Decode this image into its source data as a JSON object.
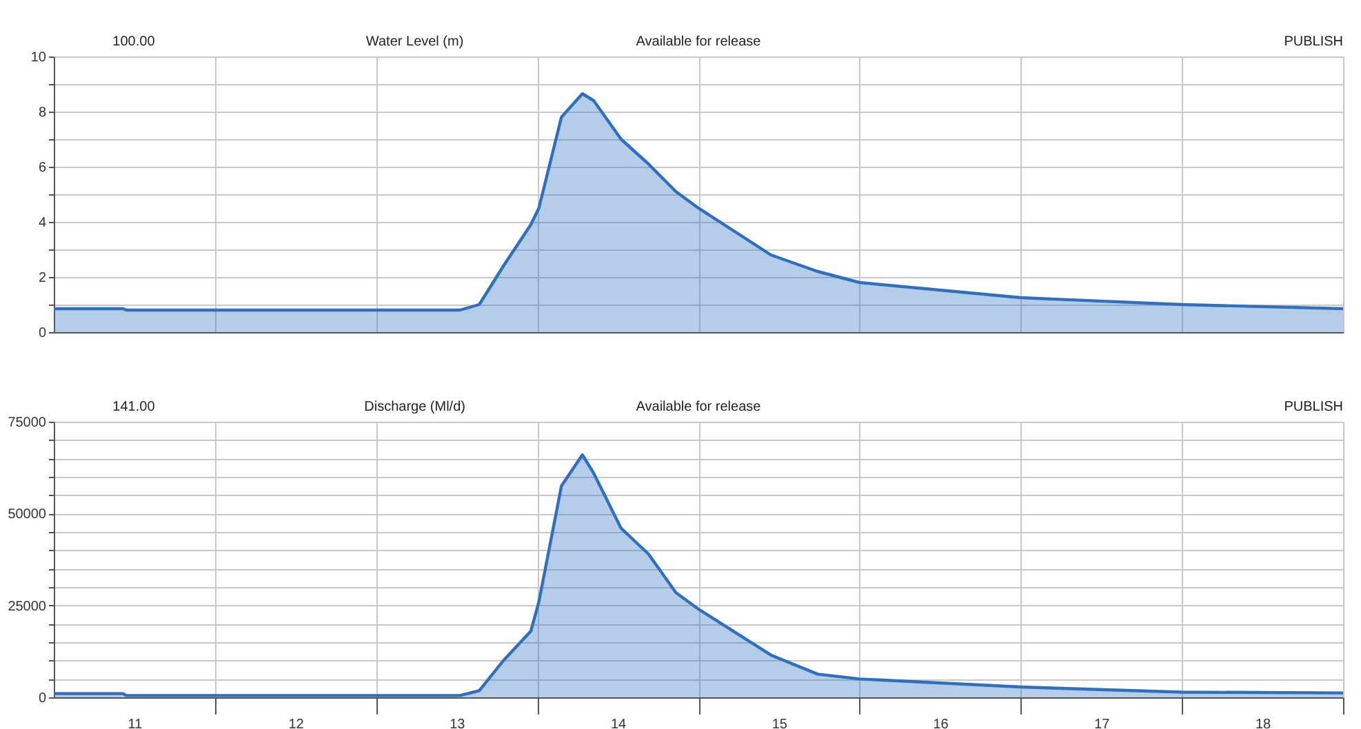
{
  "chart_data": [
    {
      "type": "area",
      "title": "Water Level (m)",
      "annotations": [
        "100.00",
        "Available for release",
        "PUBLISH"
      ],
      "x": [
        11,
        11.43,
        11.45,
        12,
        13.52,
        13.64,
        13.79,
        13.96,
        14.01,
        14.15,
        14.28,
        14.35,
        14.52,
        14.69,
        14.86,
        15.0,
        15.45,
        15.74,
        16.0,
        17.0,
        18.0,
        19.0
      ],
      "series": [
        {
          "color": "#2f6fc0",
          "values": [
            0.85,
            0.85,
            0.8,
            0.8,
            0.8,
            1.0,
            2.4,
            3.9,
            4.5,
            7.8,
            8.65,
            8.4,
            7.0,
            6.1,
            5.1,
            4.5,
            2.8,
            2.2,
            1.8,
            1.25,
            1.0,
            0.85
          ]
        }
      ],
      "xlim": [
        11,
        19
      ],
      "xticks": [
        {
          "value": 12,
          "label": null
        },
        {
          "value": 13,
          "label": null
        },
        {
          "value": 14,
          "label": null
        },
        {
          "value": 15,
          "label": null
        },
        {
          "value": 16,
          "label": null
        },
        {
          "value": 17,
          "label": null
        },
        {
          "value": 18,
          "label": null
        },
        {
          "value": 19,
          "label": null
        }
      ],
      "ylim": [
        0,
        10
      ],
      "yticks": [
        0,
        {
          "value": 1,
          "label": null
        },
        2,
        {
          "value": 3,
          "label": null
        },
        4,
        {
          "value": 5,
          "label": null
        },
        6,
        {
          "value": 7,
          "label": null
        },
        8,
        {
          "value": 9,
          "label": null
        },
        10
      ],
      "grid": true,
      "tick_labels": "y"
    },
    {
      "type": "area",
      "title": "Discharge (Ml/d)",
      "annotations": [
        "141.00",
        "Available for release",
        "PUBLISH"
      ],
      "x": [
        11,
        11.43,
        11.45,
        12,
        13.52,
        13.64,
        13.79,
        13.96,
        14.01,
        14.15,
        14.28,
        14.35,
        14.52,
        14.69,
        14.86,
        15.0,
        15.45,
        15.74,
        16.0,
        17.0,
        18.0,
        19.0
      ],
      "series": [
        {
          "color": "#2f6fc0",
          "values": [
            1000,
            1000,
            500,
            500,
            500,
            1800,
            10000,
            18000,
            26000,
            57500,
            66000,
            61000,
            46000,
            39000,
            28500,
            24000,
            11500,
            6300,
            5000,
            2800,
            1400,
            1200
          ]
        }
      ],
      "xlim": [
        11,
        19
      ],
      "xticks": [
        {
          "value": 11.5,
          "label": "11"
        },
        {
          "value": 12,
          "label": null
        },
        {
          "value": 12.5,
          "label": "12"
        },
        {
          "value": 13,
          "label": null
        },
        {
          "value": 13.5,
          "label": "13"
        },
        {
          "value": 14,
          "label": null
        },
        {
          "value": 14.5,
          "label": "14"
        },
        {
          "value": 15,
          "label": null
        },
        {
          "value": 15.5,
          "label": "15"
        },
        {
          "value": 16,
          "label": null
        },
        {
          "value": 16.5,
          "label": "16"
        },
        {
          "value": 17,
          "label": null
        },
        {
          "value": 17.5,
          "label": "17"
        },
        {
          "value": 18,
          "label": null
        },
        {
          "value": 18.5,
          "label": "18"
        },
        {
          "value": 19,
          "label": null
        }
      ],
      "ylim": [
        0,
        75000
      ],
      "yticks": [
        0,
        {
          "value": 5000,
          "label": null
        },
        {
          "value": 10000,
          "label": null
        },
        {
          "value": 15000,
          "label": null
        },
        {
          "value": 20000,
          "label": null
        },
        25000,
        {
          "value": 30000,
          "label": null
        },
        {
          "value": 35000,
          "label": null
        },
        {
          "value": 40000,
          "label": null
        },
        {
          "value": 45000,
          "label": null
        },
        50000,
        {
          "value": 55000,
          "label": null
        },
        {
          "value": 60000,
          "label": null
        },
        {
          "value": 65000,
          "label": null
        },
        {
          "value": 70000,
          "label": null
        },
        75000
      ],
      "grid": true
    }
  ]
}
